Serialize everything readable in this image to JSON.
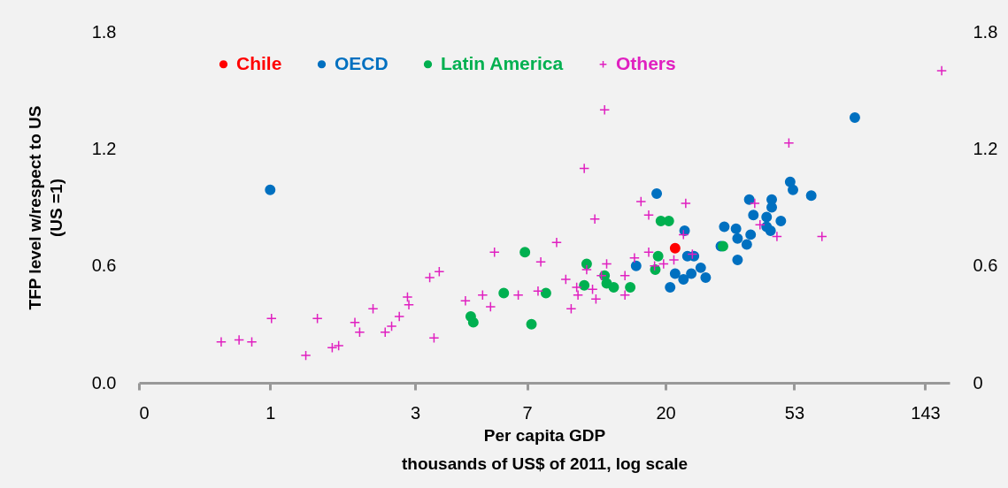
{
  "chart_data": {
    "type": "scatter",
    "xlabel": "Per capita GDP\nthousands  of US$ of 2011, log scale",
    "ylabel": "TFP level w/respect to US\n(US =1)",
    "log": "x",
    "xlim": [
      0.37,
      172
    ],
    "xticks": [
      {
        "value": 0.37,
        "label": "0"
      },
      1,
      3,
      7,
      20,
      53,
      143
    ],
    "ylim": [
      0,
      1.8
    ],
    "yticks": [
      {
        "value": 0,
        "label": "0.0"
      },
      0.6,
      1.2,
      1.8
    ],
    "y2lim": [
      0,
      1.8
    ],
    "y2ticks": [
      0,
      0.6,
      1.2,
      1.8
    ],
    "legend": "top",
    "series": [
      {
        "name": "Chile",
        "color": "#ff0000",
        "marker": "circle",
        "x": [
          21.5
        ],
        "values": [
          0.69
        ]
      },
      {
        "name": "OECD",
        "color": "#0070c0",
        "marker": "circle",
        "x": [
          1.0,
          16.0,
          20.7,
          21.5,
          22.9,
          23.6,
          24.8,
          24.3,
          26.1,
          27.1,
          30.4,
          34.5,
          34.5,
          37.0,
          38.1,
          23.1,
          34.1,
          31.2,
          44.3,
          18.7,
          83.9,
          51.4,
          52.5,
          60.3,
          37.7,
          44.7,
          44.7,
          38.9,
          43.0,
          47.9,
          43.0
        ],
        "values": [
          0.99,
          0.6,
          0.49,
          0.56,
          0.53,
          0.65,
          0.65,
          0.56,
          0.59,
          0.54,
          0.7,
          0.74,
          0.63,
          0.71,
          0.76,
          0.78,
          0.79,
          0.8,
          0.78,
          0.97,
          1.36,
          1.03,
          0.99,
          0.96,
          0.94,
          0.94,
          0.9,
          0.86,
          0.85,
          0.83,
          0.8
        ]
      },
      {
        "name": "Latin America",
        "color": "#00b050",
        "marker": "circle",
        "x": [
          4.57,
          4.66,
          5.87,
          6.89,
          7.24,
          8.08,
          11.0,
          10.8,
          12.6,
          12.8,
          13.5,
          15.3,
          18.9,
          18.5,
          30.9,
          19.3,
          20.5
        ],
        "values": [
          0.34,
          0.31,
          0.46,
          0.67,
          0.3,
          0.46,
          0.61,
          0.5,
          0.55,
          0.51,
          0.49,
          0.49,
          0.65,
          0.58,
          0.7,
          0.83,
          0.83
        ]
      },
      {
        "name": "Others",
        "color": "#e020c0",
        "marker": "cross",
        "x": [
          0.69,
          0.79,
          0.87,
          1.01,
          1.43,
          1.31,
          1.6,
          1.68,
          1.9,
          1.97,
          2.18,
          2.39,
          2.51,
          2.66,
          2.83,
          2.86,
          3.35,
          3.6,
          3.46,
          4.39,
          5.0,
          5.31,
          5.47,
          6.55,
          7.77,
          7.61,
          8.76,
          9.39,
          10.2,
          10.3,
          9.78,
          11.0,
          11.5,
          11.8,
          12.3,
          12.8,
          14.7,
          14.7,
          15.8,
          17.6,
          18.4,
          19.7,
          21.3,
          24.5,
          12.6,
          10.8,
          16.6,
          17.6,
          11.7,
          23.3,
          39.3,
          40.9,
          50.9,
          22.9,
          46.5,
          65.4,
          162
        ],
        "values": [
          0.21,
          0.22,
          0.21,
          0.33,
          0.33,
          0.14,
          0.18,
          0.19,
          0.31,
          0.26,
          0.38,
          0.26,
          0.29,
          0.34,
          0.44,
          0.4,
          0.54,
          0.57,
          0.23,
          0.42,
          0.45,
          0.39,
          0.67,
          0.45,
          0.62,
          0.47,
          0.72,
          0.53,
          0.49,
          0.45,
          0.38,
          0.58,
          0.48,
          0.43,
          0.55,
          0.61,
          0.55,
          0.45,
          0.64,
          0.67,
          0.6,
          0.61,
          0.63,
          0.66,
          1.4,
          1.1,
          0.93,
          0.86,
          0.84,
          0.92,
          0.92,
          0.81,
          1.23,
          0.76,
          0.75,
          0.75,
          1.6
        ]
      }
    ]
  }
}
